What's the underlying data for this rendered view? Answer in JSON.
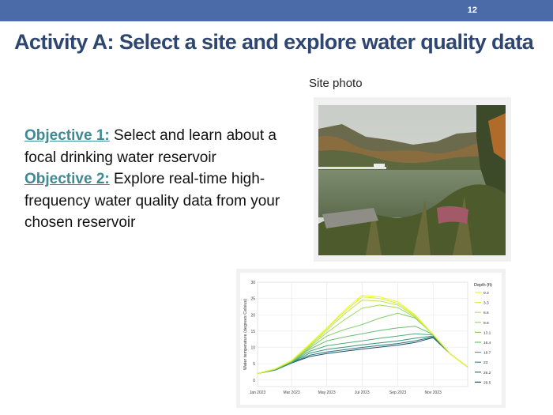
{
  "slide": {
    "number": "12",
    "title": "Activity A: Select a site and explore water quality data",
    "photo_caption": "Site photo",
    "objectives": [
      {
        "label": "Objective 1:",
        "text": " Select and learn about a focal drinking water reservoir"
      },
      {
        "label": "Objective 2:",
        "text": " Explore real-time high-frequency water quality data from your chosen reservoir"
      }
    ],
    "colors": {
      "header_bar": "#4a6aa8",
      "title": "#2f4670",
      "objective_label": "#3d8a94"
    }
  },
  "chart_data": {
    "type": "line",
    "title": "",
    "xlabel": "",
    "ylabel": "Water temperature (degrees Celsius)",
    "ylim": [
      -2,
      30
    ],
    "yticks": [
      0,
      5,
      10,
      15,
      20,
      25,
      30
    ],
    "xlim": [
      "2023-01-01",
      "2023-12-31"
    ],
    "xticks": [
      {
        "date": "2023-01-01",
        "label": "Jan 2023"
      },
      {
        "date": "2023-03-01",
        "label": "Mar 2023"
      },
      {
        "date": "2023-05-01",
        "label": "May 2023"
      },
      {
        "date": "2023-07-01",
        "label": "Jul 2023"
      },
      {
        "date": "2023-09-01",
        "label": "Sep 2023"
      },
      {
        "date": "2023-11-01",
        "label": "Nov 2023"
      }
    ],
    "x": [
      "2023-01-01",
      "2023-02-01",
      "2023-03-01",
      "2023-04-01",
      "2023-05-01",
      "2023-06-01",
      "2023-07-01",
      "2023-08-01",
      "2023-09-01",
      "2023-10-01",
      "2023-11-01",
      "2023-12-01",
      "2023-12-31"
    ],
    "legend": {
      "title": "Depth (ft)",
      "position": "right"
    },
    "series": [
      {
        "name": "0.3",
        "color": "#f0f921",
        "values": [
          2,
          3.5,
          6,
          11,
          16,
          21.5,
          26,
          25.5,
          24,
          20,
          14,
          8,
          4
        ]
      },
      {
        "name": "3.3",
        "color": "#d9ef3c",
        "values": [
          2,
          3.5,
          6,
          10.8,
          15.8,
          21,
          25.5,
          25,
          23.5,
          19.8,
          14,
          8,
          4
        ]
      },
      {
        "name": "6.6",
        "color": "#bde54e",
        "values": [
          2,
          3.4,
          5.9,
          10.5,
          15.3,
          20.3,
          24.5,
          24.2,
          23,
          19.5,
          14,
          8,
          4
        ]
      },
      {
        "name": "9.8",
        "color": "#a0da5c",
        "values": [
          2,
          3.4,
          5.8,
          10.2,
          14.5,
          18.5,
          22,
          23,
          22.2,
          19.2,
          14,
          8,
          4
        ]
      },
      {
        "name": "13.1",
        "color": "#84cd68",
        "values": [
          2,
          3.3,
          5.7,
          9.8,
          13.5,
          15.5,
          17,
          19,
          20.5,
          19,
          14,
          8,
          4
        ]
      },
      {
        "name": "16.4",
        "color": "#68bf71",
        "values": [
          2,
          3.3,
          5.6,
          9.4,
          12,
          13.2,
          14.2,
          15.2,
          16,
          16.5,
          14,
          8,
          4
        ]
      },
      {
        "name": "19.7",
        "color": "#4ead76",
        "values": [
          2,
          3.2,
          5.5,
          8.8,
          10.5,
          11.3,
          12,
          12.8,
          13.5,
          14.2,
          13.8,
          8,
          4
        ]
      },
      {
        "name": "23",
        "color": "#3a9378",
        "values": [
          2,
          3.2,
          5.4,
          8.2,
          9.4,
          10.1,
          10.8,
          11.4,
          12,
          12.8,
          13.5,
          8,
          4
        ]
      },
      {
        "name": "26.2",
        "color": "#2c7777",
        "values": [
          2,
          3.1,
          5.3,
          7.6,
          8.6,
          9.3,
          10,
          10.6,
          11.2,
          12,
          13.2,
          8,
          4
        ]
      },
      {
        "name": "29.5",
        "color": "#1e4f6e",
        "values": [
          2,
          3.1,
          5.2,
          7.2,
          8.1,
          8.8,
          9.5,
          10.1,
          10.7,
          11.5,
          13,
          8,
          4
        ]
      }
    ]
  }
}
